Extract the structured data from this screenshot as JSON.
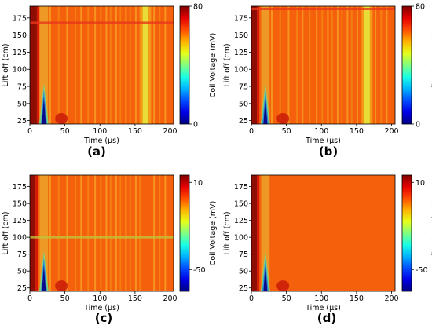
{
  "chart_data": [
    {
      "type": "heatmap",
      "panel_label": "(a)",
      "xlabel": "Time (μs)",
      "ylabel": "Lift off (cm)",
      "colorbar_label": "Coil Voltage (mV)",
      "xlim": [
        0,
        205
      ],
      "ylim": [
        20,
        192
      ],
      "xticks": [
        0,
        50,
        100,
        150,
        200
      ],
      "yticks": [
        25,
        50,
        75,
        100,
        125,
        150,
        175
      ],
      "clim": [
        0,
        80
      ],
      "cticks": [
        0,
        80
      ],
      "colormap": "jet",
      "features": {
        "hot_band_end_us": 10,
        "dip_time_us": 20,
        "dip_top_cm": 80,
        "bright_band_us": 165,
        "striations": true,
        "streak_cm": 168
      }
    },
    {
      "type": "heatmap",
      "panel_label": "(b)",
      "xlabel": "Time (μs)",
      "ylabel": "Lift off (cm)",
      "colorbar_label": "Coil Voltage (mV)",
      "xlim": [
        0,
        205
      ],
      "ylim": [
        20,
        192
      ],
      "xticks": [
        0,
        50,
        100,
        150,
        200
      ],
      "yticks": [
        25,
        50,
        75,
        100,
        125,
        150,
        175
      ],
      "clim": [
        0,
        80
      ],
      "cticks": [
        0,
        80
      ],
      "colormap": "jet",
      "features": {
        "hot_band_end_us": 8,
        "dip_time_us": 20,
        "dip_top_cm": 80,
        "bright_band_us": 165,
        "striations": true,
        "streak_cm": 188
      }
    },
    {
      "type": "heatmap",
      "panel_label": "(c)",
      "xlabel": "Time (μs)",
      "ylabel": "Lift off (cm)",
      "colorbar_label": "Coil Voltage (mV)",
      "xlim": [
        0,
        205
      ],
      "ylim": [
        20,
        192
      ],
      "xticks": [
        0,
        50,
        100,
        150,
        200
      ],
      "yticks": [
        25,
        50,
        75,
        100,
        125,
        150,
        175
      ],
      "clim": [
        -65,
        15
      ],
      "cticks": [
        10,
        -50
      ],
      "colormap": "jet",
      "features": {
        "hot_band_end_us": 8,
        "dip_time_us": 20,
        "dip_top_cm": 80,
        "bright_band_us": 0,
        "striations": true,
        "streak_cm": 100
      }
    },
    {
      "type": "heatmap",
      "panel_label": "(d)",
      "xlabel": "Time (μs)",
      "ylabel": "Lift off (cm)",
      "colorbar_label": "Coil Voltage (mV)",
      "xlim": [
        0,
        205
      ],
      "ylim": [
        20,
        192
      ],
      "xticks": [
        0,
        50,
        100,
        150,
        200
      ],
      "yticks": [
        25,
        50,
        75,
        100,
        125,
        150,
        175
      ],
      "clim": [
        -65,
        15
      ],
      "cticks": [
        10,
        -50
      ],
      "colormap": "jet",
      "features": {
        "hot_band_end_us": 8,
        "dip_time_us": 20,
        "dip_top_cm": 80,
        "bright_band_us": 0,
        "striations": false,
        "streak_cm": 0
      }
    }
  ]
}
